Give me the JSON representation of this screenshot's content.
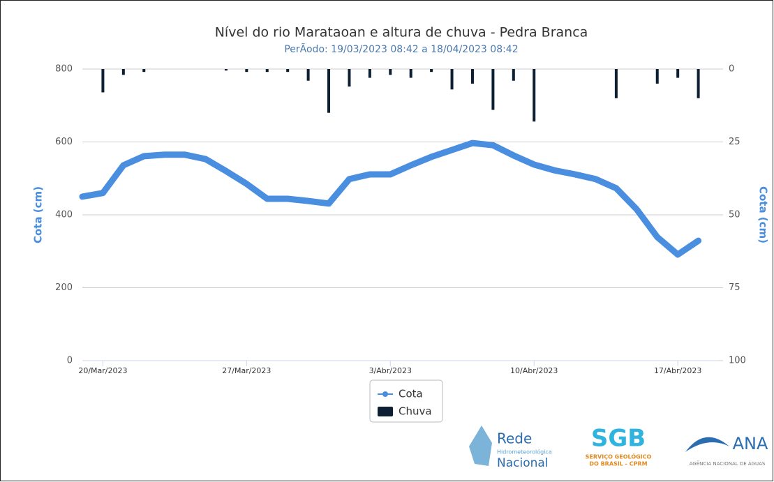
{
  "chart_data": {
    "type": "line",
    "title": "Nível do rio Marataoan e altura de chuva - Pedra Branca",
    "subtitle": "PerÃodo: 19/03/2023 08:42 a 18/04/2023 08:42",
    "y_label": "Cota (cm)",
    "y2_label": "Cota (cm)",
    "x": [
      "2023-03-19",
      "2023-03-20",
      "2023-03-21",
      "2023-03-22",
      "2023-03-23",
      "2023-03-24",
      "2023-03-25",
      "2023-03-26",
      "2023-03-27",
      "2023-03-28",
      "2023-03-29",
      "2023-03-30",
      "2023-03-31",
      "2023-04-01",
      "2023-04-02",
      "2023-04-03",
      "2023-04-04",
      "2023-04-05",
      "2023-04-06",
      "2023-04-07",
      "2023-04-08",
      "2023-04-09",
      "2023-04-10",
      "2023-04-11",
      "2023-04-12",
      "2023-04-13",
      "2023-04-14",
      "2023-04-15",
      "2023-04-16",
      "2023-04-17",
      "2023-04-18"
    ],
    "series": [
      {
        "name": "Cota",
        "type": "line",
        "color": "#4a8ee0",
        "values": [
          450,
          460,
          536,
          561,
          565,
          565,
          553,
          520,
          485,
          444,
          444,
          438,
          431,
          498,
          511,
          511,
          536,
          559,
          578,
          597,
          591,
          563,
          538,
          522,
          511,
          498,
          473,
          415,
          339,
          291,
          329
        ]
      },
      {
        "name": "Chuva",
        "type": "bar",
        "axis": "y2",
        "color": "#0d2033",
        "values": [
          0,
          8,
          2,
          1,
          0,
          0,
          0,
          0.5,
          1,
          1,
          1,
          4,
          15,
          6,
          3,
          2,
          3,
          1,
          7,
          5,
          14,
          4,
          18,
          0,
          0,
          0,
          10,
          0,
          5,
          3,
          10
        ]
      }
    ],
    "xlim": [
      "2023-03-19",
      "2023-04-19"
    ],
    "xticks": [
      {
        "value": "2023-03-20",
        "label": "20/Mar/2023"
      },
      {
        "value": "2023-03-27",
        "label": "27/Mar/2023"
      },
      {
        "value": "2023-04-03",
        "label": "3/Abr/2023"
      },
      {
        "value": "2023-04-10",
        "label": "10/Abr/2023"
      },
      {
        "value": "2023-04-17",
        "label": "17/Abr/2023"
      }
    ],
    "ylim": [
      0,
      800
    ],
    "yticks": [
      0,
      200,
      400,
      600,
      800
    ],
    "y2lim": [
      0,
      100
    ],
    "y2ticks": [
      0,
      25,
      50,
      75,
      100
    ],
    "y2_reversed": true,
    "grid": true,
    "legend": "bottom"
  },
  "logos": {
    "rede": [
      "Rede",
      "Hidrometeorológica",
      "Nacional"
    ],
    "sgb": [
      "SGB",
      "SERVIÇO GEOLÓGICO",
      "DO BRASIL - CPRM"
    ],
    "ana": [
      "ANA",
      "AGÊNCIA NACIONAL DE ÁGUAS"
    ]
  }
}
